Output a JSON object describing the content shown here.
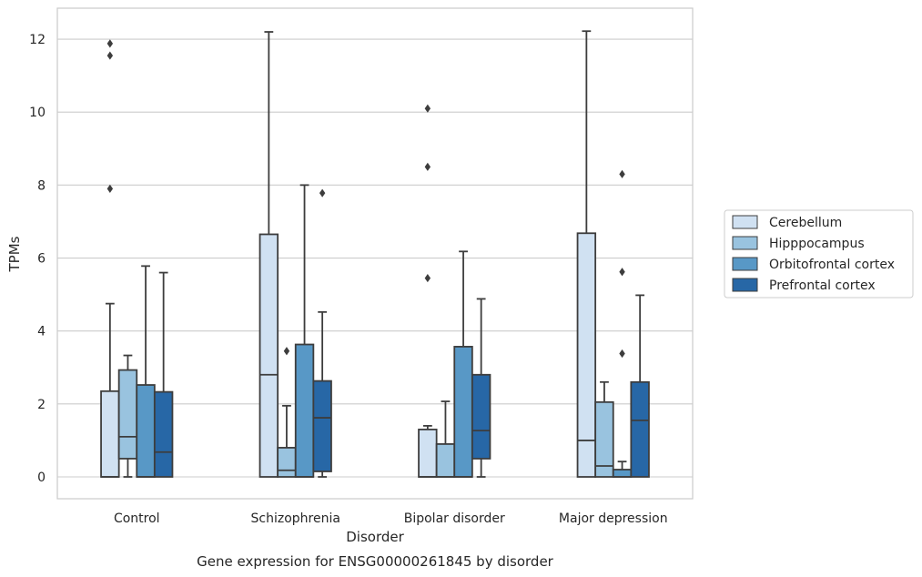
{
  "chart_data": {
    "type": "boxplot",
    "title": "Gene expression for ENSG00000261845 by disorder",
    "xlabel": "Disorder",
    "ylabel": "TPMs",
    "ylim": [
      -0.6,
      12.85
    ],
    "yticks": [
      0,
      2,
      4,
      6,
      8,
      10,
      12
    ],
    "grid": "horizontal",
    "legend_position": "right",
    "categories": [
      "Control",
      "Schizophrenia",
      "Bipolar disorder",
      "Major depression"
    ],
    "series": [
      {
        "name": "Cerebellum",
        "color": "#d0e1f2",
        "boxes": [
          {
            "whislo": 0,
            "q1": 0,
            "med": 0,
            "q3": 2.35,
            "whishi": 4.75,
            "fliers": [
              7.9,
              11.55,
              11.88
            ]
          },
          {
            "whislo": 0,
            "q1": 0,
            "med": 2.8,
            "q3": 6.65,
            "whishi": 12.2,
            "fliers": []
          },
          {
            "whislo": 0,
            "q1": 0,
            "med": 0,
            "q3": 1.3,
            "whishi": 1.4,
            "fliers": [
              5.45,
              8.5,
              10.1
            ]
          },
          {
            "whislo": 0,
            "q1": 0,
            "med": 1.0,
            "q3": 6.68,
            "whishi": 12.22,
            "fliers": []
          }
        ]
      },
      {
        "name": "Hipppocampus",
        "color": "#99c3df",
        "boxes": [
          {
            "whislo": 0,
            "q1": 0.5,
            "med": 1.1,
            "q3": 2.93,
            "whishi": 3.33,
            "fliers": []
          },
          {
            "whislo": 0,
            "q1": 0,
            "med": 0.18,
            "q3": 0.8,
            "whishi": 1.95,
            "fliers": [
              3.45
            ]
          },
          {
            "whislo": 0,
            "q1": 0,
            "med": 0,
            "q3": 0.9,
            "whishi": 2.07,
            "fliers": []
          },
          {
            "whislo": 0,
            "q1": 0,
            "med": 0.3,
            "q3": 2.05,
            "whishi": 2.6,
            "fliers": []
          }
        ]
      },
      {
        "name": "Orbitofrontal cortex",
        "color": "#5898c6",
        "boxes": [
          {
            "whislo": 0,
            "q1": 0,
            "med": 0,
            "q3": 2.52,
            "whishi": 5.78,
            "fliers": []
          },
          {
            "whislo": 0,
            "q1": 0,
            "med": 0,
            "q3": 3.63,
            "whishi": 8.0,
            "fliers": []
          },
          {
            "whislo": 0,
            "q1": 0,
            "med": 0,
            "q3": 3.57,
            "whishi": 6.18,
            "fliers": []
          },
          {
            "whislo": 0,
            "q1": 0,
            "med": 0,
            "q3": 0.2,
            "whishi": 0.42,
            "fliers": [
              3.38,
              5.62,
              8.3
            ]
          }
        ]
      },
      {
        "name": "Prefrontal cortex",
        "color": "#2767a6",
        "boxes": [
          {
            "whislo": 0,
            "q1": 0,
            "med": 0.68,
            "q3": 2.33,
            "whishi": 5.6,
            "fliers": []
          },
          {
            "whislo": 0,
            "q1": 0.15,
            "med": 1.62,
            "q3": 2.63,
            "whishi": 4.52,
            "fliers": [
              7.78
            ]
          },
          {
            "whislo": 0,
            "q1": 0.5,
            "med": 1.27,
            "q3": 2.8,
            "whishi": 4.88,
            "fliers": []
          },
          {
            "whislo": 0,
            "q1": 0,
            "med": 1.55,
            "q3": 2.6,
            "whishi": 4.98,
            "fliers": []
          }
        ]
      }
    ]
  }
}
